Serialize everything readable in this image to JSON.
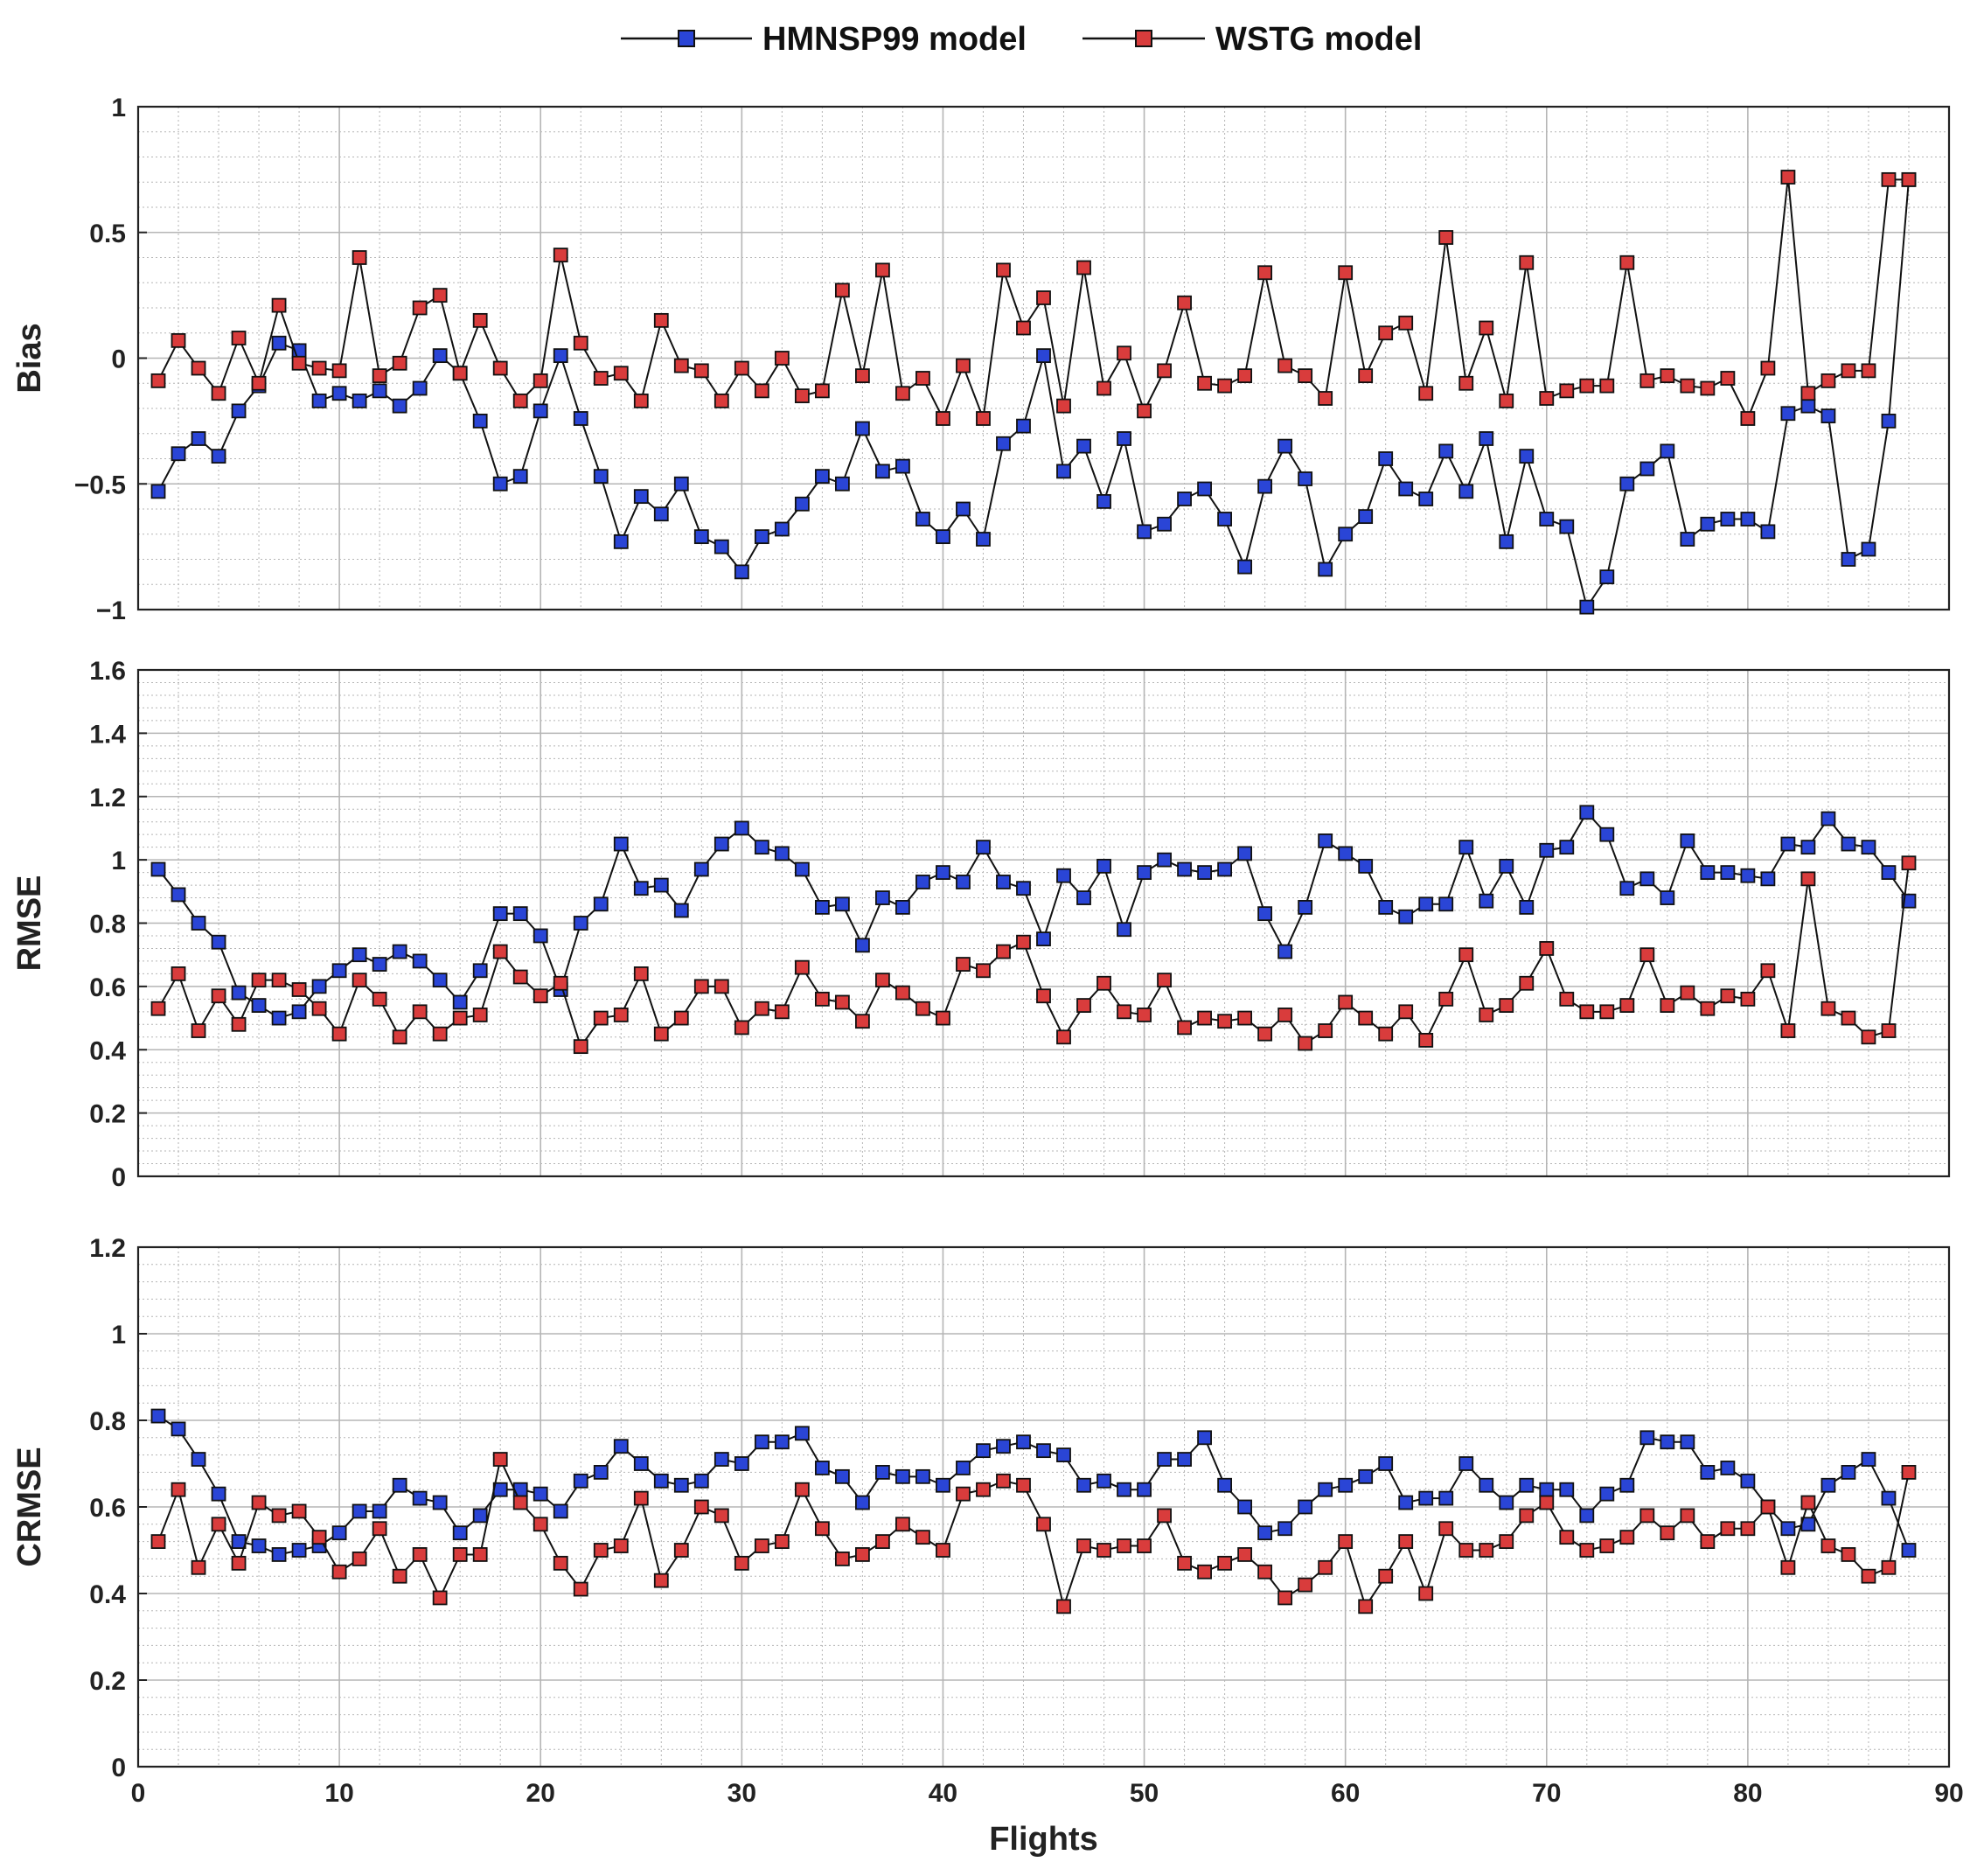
{
  "colors": {
    "hmnsp99": "#2a45d6",
    "wstg": "#d93c3c",
    "line": "#111111",
    "grid": "#b5b5b5"
  },
  "legend": {
    "placement": "top-center"
  },
  "chart_data": [
    {
      "type": "line",
      "ylabel": "Bias",
      "xlabel": "",
      "xlim": [
        0,
        90
      ],
      "ylim": [
        -1,
        1
      ],
      "yticks": [
        1,
        0.5,
        0,
        -0.5,
        -1
      ],
      "ytick_labels": [
        "1",
        "0.5",
        "0",
        "−0.5",
        "−1"
      ],
      "xtick_labels": [],
      "grid": true,
      "x": [
        1,
        2,
        3,
        4,
        5,
        6,
        7,
        8,
        9,
        10,
        11,
        12,
        13,
        14,
        15,
        16,
        17,
        18,
        19,
        20,
        21,
        22,
        23,
        24,
        25,
        26,
        27,
        28,
        29,
        30,
        31,
        32,
        33,
        34,
        35,
        36,
        37,
        38,
        39,
        40,
        41,
        42,
        43,
        44,
        45,
        46,
        47,
        48,
        49,
        50,
        51,
        52,
        53,
        54,
        55,
        56,
        57,
        58,
        59,
        60,
        61,
        62,
        63,
        64,
        65,
        66,
        67,
        68,
        69,
        70,
        71,
        72,
        73,
        74,
        75,
        76,
        77,
        78,
        79,
        80,
        81,
        82,
        83,
        84,
        85,
        86,
        87,
        88
      ],
      "series": [
        {
          "name": "HMNSP99 model",
          "color_key": "hmnsp99",
          "values": [
            -0.53,
            -0.38,
            -0.32,
            -0.39,
            -0.21,
            -0.11,
            0.06,
            0.03,
            -0.17,
            -0.14,
            -0.17,
            -0.13,
            -0.19,
            -0.12,
            0.01,
            -0.06,
            -0.25,
            -0.5,
            -0.47,
            -0.21,
            0.01,
            -0.24,
            -0.47,
            -0.73,
            -0.55,
            -0.62,
            -0.5,
            -0.71,
            -0.75,
            -0.85,
            -0.71,
            -0.68,
            -0.58,
            -0.47,
            -0.5,
            -0.28,
            -0.45,
            -0.43,
            -0.64,
            -0.71,
            -0.6,
            -0.72,
            -0.34,
            -0.27,
            0.01,
            -0.45,
            -0.35,
            -0.57,
            -0.32,
            -0.69,
            -0.66,
            -0.56,
            -0.52,
            -0.64,
            -0.83,
            -0.51,
            -0.35,
            -0.48,
            -0.84,
            -0.7,
            -0.63,
            -0.4,
            -0.52,
            -0.56,
            -0.37,
            -0.53,
            -0.32,
            -0.73,
            -0.39,
            -0.64,
            -0.67,
            -0.99,
            -0.87,
            -0.5,
            -0.44,
            -0.37,
            -0.72,
            -0.66,
            -0.64,
            -0.64,
            -0.69,
            -0.22,
            -0.19,
            -0.23,
            -0.8,
            -0.76,
            -0.25,
            0.71
          ]
        },
        {
          "name": "WSTG model",
          "color_key": "wstg",
          "values": [
            -0.09,
            0.07,
            -0.04,
            -0.14,
            0.08,
            -0.1,
            0.21,
            -0.02,
            -0.04,
            -0.05,
            0.4,
            -0.07,
            -0.02,
            0.2,
            0.25,
            -0.06,
            0.15,
            -0.04,
            -0.17,
            -0.09,
            0.41,
            0.06,
            -0.08,
            -0.06,
            -0.17,
            0.15,
            -0.03,
            -0.05,
            -0.17,
            -0.04,
            -0.13,
            -0.0,
            -0.15,
            -0.13,
            0.27,
            -0.07,
            0.35,
            -0.14,
            -0.08,
            -0.24,
            -0.03,
            -0.24,
            0.35,
            0.12,
            0.24,
            -0.19,
            0.36,
            -0.12,
            0.02,
            -0.21,
            -0.05,
            0.22,
            -0.1,
            -0.11,
            -0.07,
            0.34,
            -0.03,
            -0.07,
            -0.16,
            0.34,
            -0.07,
            0.1,
            0.14,
            -0.14,
            0.48,
            -0.1,
            0.12,
            -0.17,
            0.38,
            -0.16,
            -0.13,
            -0.11,
            -0.11,
            0.38,
            -0.09,
            -0.07,
            -0.11,
            -0.12,
            -0.08,
            -0.24,
            -0.04,
            0.72,
            -0.14,
            -0.09,
            -0.05,
            -0.05,
            0.71,
            0.71
          ]
        }
      ]
    },
    {
      "type": "line",
      "ylabel": "RMSE",
      "xlabel": "",
      "xlim": [
        0,
        90
      ],
      "ylim": [
        0,
        1.6
      ],
      "yticks": [
        1.6,
        1.4,
        1.2,
        1,
        0.8,
        0.6,
        0.4,
        0.2,
        0
      ],
      "ytick_labels": [
        "1.6",
        "1.4",
        "1.2",
        "1",
        "0.8",
        "0.6",
        "0.4",
        "0.2",
        "0"
      ],
      "xtick_labels": [],
      "grid": true,
      "x": [
        1,
        2,
        3,
        4,
        5,
        6,
        7,
        8,
        9,
        10,
        11,
        12,
        13,
        14,
        15,
        16,
        17,
        18,
        19,
        20,
        21,
        22,
        23,
        24,
        25,
        26,
        27,
        28,
        29,
        30,
        31,
        32,
        33,
        34,
        35,
        36,
        37,
        38,
        39,
        40,
        41,
        42,
        43,
        44,
        45,
        46,
        47,
        48,
        49,
        50,
        51,
        52,
        53,
        54,
        55,
        56,
        57,
        58,
        59,
        60,
        61,
        62,
        63,
        64,
        65,
        66,
        67,
        68,
        69,
        70,
        71,
        72,
        73,
        74,
        75,
        76,
        77,
        78,
        79,
        80,
        81,
        82,
        83,
        84,
        85,
        86,
        87,
        88
      ],
      "series": [
        {
          "name": "HMNSP99 model",
          "color_key": "hmnsp99",
          "values": [
            0.97,
            0.89,
            0.8,
            0.74,
            0.58,
            0.54,
            0.5,
            0.52,
            0.6,
            0.65,
            0.7,
            0.67,
            0.71,
            0.68,
            0.62,
            0.55,
            0.65,
            0.83,
            0.83,
            0.76,
            0.59,
            0.8,
            0.86,
            1.05,
            0.91,
            0.92,
            0.84,
            0.97,
            1.05,
            1.1,
            1.04,
            1.02,
            0.97,
            0.85,
            0.86,
            0.73,
            0.88,
            0.85,
            0.93,
            0.96,
            0.93,
            1.04,
            0.93,
            0.91,
            0.75,
            0.95,
            0.88,
            0.98,
            0.78,
            0.96,
            1.0,
            0.97,
            0.96,
            0.97,
            1.02,
            0.83,
            0.71,
            0.85,
            1.06,
            1.02,
            0.98,
            0.85,
            0.82,
            0.86,
            0.86,
            1.04,
            0.87,
            0.98,
            0.85,
            1.03,
            1.04,
            1.15,
            1.08,
            0.91,
            0.94,
            0.88,
            1.06,
            0.96,
            0.96,
            0.95,
            0.94,
            1.05,
            1.04,
            1.13,
            1.05,
            1.04,
            0.96,
            0.87
          ]
        },
        {
          "name": "WSTG model",
          "color_key": "wstg",
          "values": [
            0.53,
            0.64,
            0.46,
            0.57,
            0.48,
            0.62,
            0.62,
            0.59,
            0.53,
            0.45,
            0.62,
            0.56,
            0.44,
            0.52,
            0.45,
            0.5,
            0.51,
            0.71,
            0.63,
            0.57,
            0.61,
            0.41,
            0.5,
            0.51,
            0.64,
            0.45,
            0.5,
            0.6,
            0.6,
            0.47,
            0.53,
            0.52,
            0.66,
            0.56,
            0.55,
            0.49,
            0.62,
            0.58,
            0.53,
            0.5,
            0.67,
            0.65,
            0.71,
            0.74,
            0.57,
            0.44,
            0.54,
            0.61,
            0.52,
            0.51,
            0.62,
            0.47,
            0.5,
            0.49,
            0.5,
            0.45,
            0.51,
            0.42,
            0.46,
            0.55,
            0.5,
            0.45,
            0.52,
            0.43,
            0.56,
            0.7,
            0.51,
            0.54,
            0.61,
            0.72,
            0.56,
            0.52,
            0.52,
            0.54,
            0.7,
            0.54,
            0.58,
            0.53,
            0.57,
            0.56,
            0.65,
            0.46,
            0.94,
            0.53,
            0.5,
            0.44,
            0.46,
            0.99
          ]
        }
      ]
    },
    {
      "type": "line",
      "ylabel": "CRMSE",
      "xlabel": "Flights",
      "xlim": [
        0,
        90
      ],
      "ylim": [
        0,
        1.2
      ],
      "yticks": [
        1.2,
        1,
        0.8,
        0.6,
        0.4,
        0.2,
        0
      ],
      "ytick_labels": [
        "1.2",
        "1",
        "0.8",
        "0.6",
        "0.4",
        "0.2",
        "0"
      ],
      "xticks": [
        0,
        10,
        20,
        30,
        40,
        50,
        60,
        70,
        80,
        90
      ],
      "xtick_labels": [
        "0",
        "10",
        "20",
        "30",
        "40",
        "50",
        "60",
        "70",
        "80",
        "90"
      ],
      "grid": true,
      "x": [
        1,
        2,
        3,
        4,
        5,
        6,
        7,
        8,
        9,
        10,
        11,
        12,
        13,
        14,
        15,
        16,
        17,
        18,
        19,
        20,
        21,
        22,
        23,
        24,
        25,
        26,
        27,
        28,
        29,
        30,
        31,
        32,
        33,
        34,
        35,
        36,
        37,
        38,
        39,
        40,
        41,
        42,
        43,
        44,
        45,
        46,
        47,
        48,
        49,
        50,
        51,
        52,
        53,
        54,
        55,
        56,
        57,
        58,
        59,
        60,
        61,
        62,
        63,
        64,
        65,
        66,
        67,
        68,
        69,
        70,
        71,
        72,
        73,
        74,
        75,
        76,
        77,
        78,
        79,
        80,
        81,
        82,
        83,
        84,
        85,
        86,
        87,
        88
      ],
      "series": [
        {
          "name": "HMNSP99 model",
          "color_key": "hmnsp99",
          "values": [
            0.81,
            0.78,
            0.71,
            0.63,
            0.52,
            0.51,
            0.49,
            0.5,
            0.51,
            0.54,
            0.59,
            0.59,
            0.65,
            0.62,
            0.61,
            0.54,
            0.58,
            0.64,
            0.64,
            0.63,
            0.59,
            0.66,
            0.68,
            0.74,
            0.7,
            0.66,
            0.65,
            0.66,
            0.71,
            0.7,
            0.75,
            0.75,
            0.77,
            0.69,
            0.67,
            0.61,
            0.68,
            0.67,
            0.67,
            0.65,
            0.69,
            0.73,
            0.74,
            0.75,
            0.73,
            0.72,
            0.65,
            0.66,
            0.64,
            0.64,
            0.71,
            0.71,
            0.76,
            0.65,
            0.6,
            0.54,
            0.55,
            0.6,
            0.64,
            0.65,
            0.67,
            0.7,
            0.61,
            0.62,
            0.62,
            0.7,
            0.65,
            0.61,
            0.65,
            0.64,
            0.64,
            0.58,
            0.63,
            0.65,
            0.76,
            0.75,
            0.75,
            0.68,
            0.69,
            0.66,
            0.6,
            0.55,
            0.56,
            0.65,
            0.68,
            0.71,
            0.62,
            0.5
          ]
        },
        {
          "name": "WSTG model",
          "color_key": "wstg",
          "values": [
            0.52,
            0.64,
            0.46,
            0.56,
            0.47,
            0.61,
            0.58,
            0.59,
            0.53,
            0.45,
            0.48,
            0.55,
            0.44,
            0.49,
            0.39,
            0.49,
            0.49,
            0.71,
            0.61,
            0.56,
            0.47,
            0.41,
            0.5,
            0.51,
            0.62,
            0.43,
            0.5,
            0.6,
            0.58,
            0.47,
            0.51,
            0.52,
            0.64,
            0.55,
            0.48,
            0.49,
            0.52,
            0.56,
            0.53,
            0.5,
            0.63,
            0.64,
            0.66,
            0.65,
            0.56,
            0.37,
            0.51,
            0.5,
            0.51,
            0.51,
            0.58,
            0.47,
            0.45,
            0.47,
            0.49,
            0.45,
            0.39,
            0.42,
            0.46,
            0.52,
            0.37,
            0.44,
            0.52,
            0.4,
            0.55,
            0.5,
            0.5,
            0.52,
            0.58,
            0.61,
            0.53,
            0.5,
            0.51,
            0.53,
            0.58,
            0.54,
            0.58,
            0.52,
            0.55,
            0.55,
            0.6,
            0.46,
            0.61,
            0.51,
            0.49,
            0.44,
            0.46,
            0.68
          ]
        }
      ]
    }
  ]
}
